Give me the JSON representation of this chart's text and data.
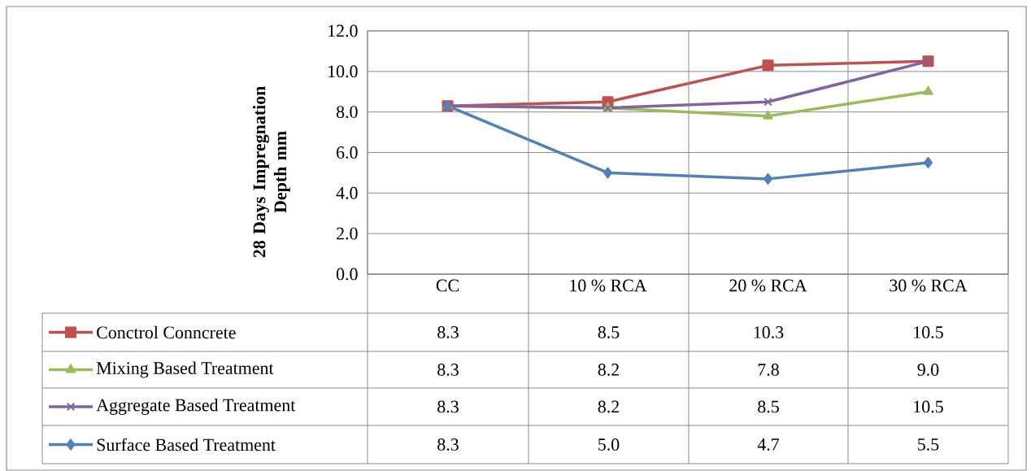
{
  "chart_data": {
    "type": "line",
    "ylabel": "28 Days Impregnation Depth mm",
    "categories": [
      "CC",
      "10 % RCA",
      "20 % RCA",
      "30 % RCA"
    ],
    "series": [
      {
        "name": "Conctrol Conncrete",
        "color": "#c0504d",
        "marker": "square",
        "values": [
          8.3,
          8.5,
          10.3,
          10.5
        ],
        "value_labels": [
          "8.3",
          "8.5",
          "10.3",
          "10.5"
        ]
      },
      {
        "name": "Mixing Based Treatment",
        "color": "#9bbb59",
        "marker": "triangle",
        "values": [
          8.3,
          8.2,
          7.8,
          9.0
        ],
        "value_labels": [
          "8.3",
          "8.2",
          "7.8",
          "9.0"
        ]
      },
      {
        "name": "Aggregate Based Treatment",
        "color": "#8064a2",
        "marker": "cross",
        "values": [
          8.3,
          8.2,
          8.5,
          10.5
        ],
        "value_labels": [
          "8.3",
          "8.2",
          "8.5",
          "10.5"
        ]
      },
      {
        "name": "Surface Based Treatment",
        "color": "#4f81bd",
        "marker": "diamond",
        "values": [
          8.3,
          5.0,
          4.7,
          5.5
        ],
        "value_labels": [
          "8.3",
          "5.0",
          "4.7",
          "5.5"
        ]
      }
    ],
    "ylim": [
      0,
      12
    ],
    "yticks": [
      {
        "value": 0,
        "label": "0.0"
      },
      {
        "value": 2,
        "label": "2.0"
      },
      {
        "value": 4,
        "label": "4.0"
      },
      {
        "value": 6,
        "label": "6.0"
      },
      {
        "value": 8,
        "label": "8.0"
      },
      {
        "value": 10,
        "label": "10.0"
      },
      {
        "value": 12,
        "label": "12.0"
      }
    ],
    "grid": "y",
    "legend": "bottom"
  }
}
